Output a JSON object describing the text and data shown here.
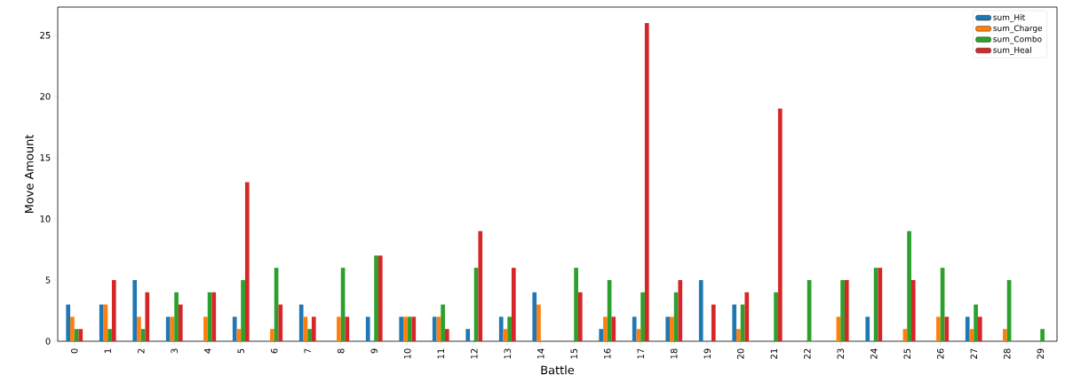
{
  "chart_data": {
    "type": "bar",
    "xlabel": "Battle",
    "ylabel": "Move Amount",
    "categories": [
      "0",
      "1",
      "2",
      "3",
      "4",
      "5",
      "6",
      "7",
      "8",
      "9",
      "10",
      "11",
      "12",
      "13",
      "14",
      "15",
      "16",
      "17",
      "18",
      "19",
      "20",
      "21",
      "22",
      "23",
      "24",
      "25",
      "26",
      "27",
      "28",
      "29"
    ],
    "series": [
      {
        "name": "sum_Hit",
        "color": "#1f77b4",
        "values": [
          3,
          3,
          5,
          2,
          0,
          2,
          0,
          3,
          0,
          2,
          2,
          2,
          1,
          2,
          4,
          0,
          1,
          2,
          2,
          5,
          3,
          0,
          0,
          0,
          2,
          0,
          0,
          2,
          0,
          0
        ]
      },
      {
        "name": "sum_Charge",
        "color": "#ff7f0e",
        "values": [
          2,
          3,
          2,
          2,
          2,
          1,
          1,
          2,
          2,
          0,
          2,
          2,
          0,
          1,
          3,
          0,
          2,
          1,
          2,
          0,
          1,
          0,
          0,
          2,
          0,
          1,
          2,
          1,
          1,
          0
        ]
      },
      {
        "name": "sum_Combo",
        "color": "#2ca02c",
        "values": [
          1,
          1,
          1,
          4,
          4,
          5,
          6,
          1,
          6,
          7,
          2,
          3,
          6,
          2,
          0,
          6,
          5,
          4,
          4,
          0,
          3,
          4,
          5,
          5,
          6,
          9,
          6,
          3,
          5,
          1
        ]
      },
      {
        "name": "sum_Heal",
        "color": "#d62728",
        "values": [
          1,
          5,
          4,
          3,
          4,
          13,
          3,
          2,
          2,
          7,
          2,
          1,
          9,
          6,
          0,
          4,
          2,
          26,
          5,
          3,
          4,
          19,
          0,
          5,
          6,
          5,
          2,
          2,
          0,
          0
        ]
      }
    ],
    "ylim": [
      0,
      27.3
    ],
    "yticks": [
      0,
      5,
      10,
      15,
      20,
      25
    ],
    "legend": "top right",
    "grid": false
  }
}
